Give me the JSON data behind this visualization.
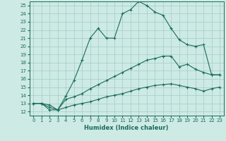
{
  "xlabel": "Humidex (Indice chaleur)",
  "bg_color": "#ceeae4",
  "grid_color": "#9ecec5",
  "line_color": "#1a6b5a",
  "xlim": [
    -0.5,
    23.5
  ],
  "ylim": [
    11.5,
    25.5
  ],
  "xticks": [
    0,
    1,
    2,
    3,
    4,
    5,
    6,
    7,
    8,
    9,
    10,
    11,
    12,
    13,
    14,
    15,
    16,
    17,
    18,
    19,
    20,
    21,
    22,
    23
  ],
  "yticks": [
    12,
    13,
    14,
    15,
    16,
    17,
    18,
    19,
    20,
    21,
    22,
    23,
    24,
    25
  ],
  "line1_x": [
    0,
    1,
    2,
    3,
    4,
    5,
    6,
    7,
    8,
    9,
    10,
    11,
    12,
    13,
    14,
    15,
    16,
    17,
    18,
    19,
    20,
    21,
    22,
    23
  ],
  "line1_y": [
    13.0,
    13.0,
    12.8,
    12.2,
    13.9,
    15.8,
    18.3,
    21.0,
    22.2,
    21.0,
    21.0,
    24.0,
    24.5,
    25.5,
    25.0,
    24.2,
    23.8,
    22.2,
    20.8,
    20.2,
    20.0,
    20.2,
    16.5,
    16.5
  ],
  "line2_x": [
    0,
    1,
    2,
    3,
    4,
    5,
    6,
    7,
    8,
    9,
    10,
    11,
    12,
    13,
    14,
    15,
    16,
    17,
    18,
    19,
    20,
    21,
    22,
    23
  ],
  "line2_y": [
    13.0,
    13.0,
    12.5,
    12.2,
    13.5,
    13.8,
    14.2,
    14.8,
    15.3,
    15.8,
    16.3,
    16.8,
    17.3,
    17.8,
    18.3,
    18.5,
    18.8,
    18.8,
    17.5,
    17.8,
    17.2,
    16.8,
    16.5,
    16.5
  ],
  "line3_x": [
    0,
    1,
    2,
    3,
    4,
    5,
    6,
    7,
    8,
    9,
    10,
    11,
    12,
    13,
    14,
    15,
    16,
    17,
    18,
    19,
    20,
    21,
    22,
    23
  ],
  "line3_y": [
    13.0,
    13.0,
    12.2,
    12.2,
    12.5,
    12.8,
    13.0,
    13.2,
    13.5,
    13.8,
    14.0,
    14.2,
    14.5,
    14.8,
    15.0,
    15.2,
    15.3,
    15.4,
    15.2,
    15.0,
    14.8,
    14.5,
    14.8,
    15.0
  ]
}
